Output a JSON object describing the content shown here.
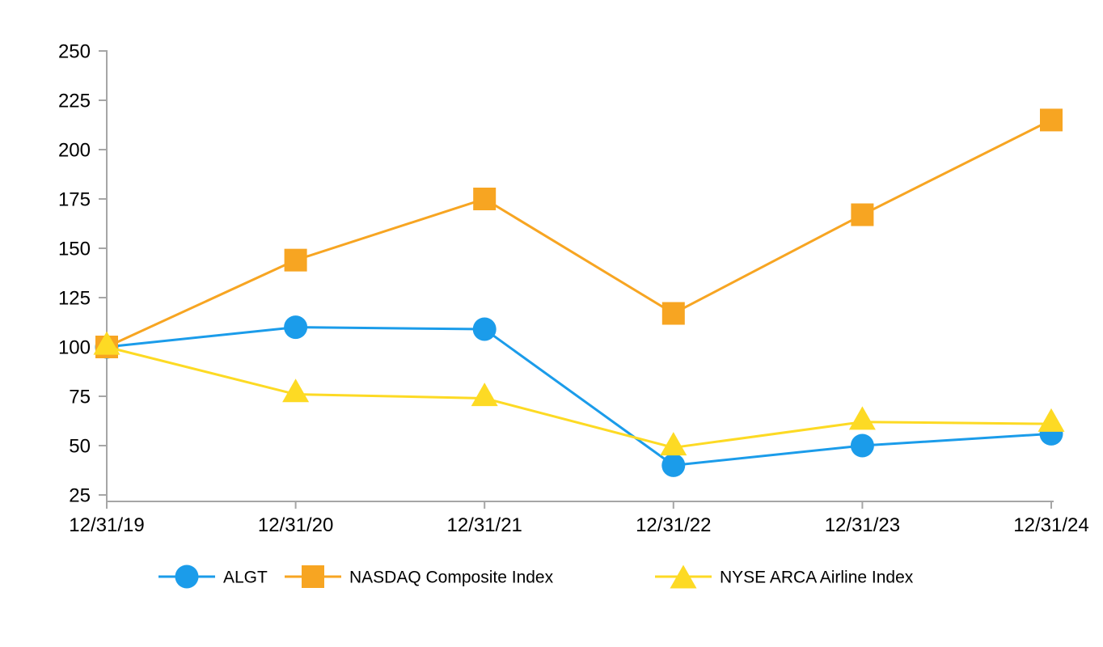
{
  "chart_data": {
    "type": "line",
    "title": "",
    "xlabel": "",
    "ylabel": "",
    "x": [
      "12/31/19",
      "12/31/20",
      "12/31/21",
      "12/31/22",
      "12/31/23",
      "12/31/24"
    ],
    "series": [
      {
        "name": "ALGT",
        "marker": "circle",
        "color": "#1B9CEA",
        "values": [
          100,
          110,
          109,
          40,
          50,
          56
        ]
      },
      {
        "name": "NASDAQ Composite Index",
        "marker": "square",
        "color": "#F7A522",
        "values": [
          100,
          144,
          175,
          117,
          167,
          215
        ]
      },
      {
        "name": "NYSE ARCA Airline Index",
        "marker": "triangle",
        "color": "#FDDA24",
        "values": [
          100,
          76,
          74,
          49,
          62,
          61
        ]
      }
    ],
    "ylim": [
      25,
      250
    ],
    "yticks": [
      25,
      50,
      75,
      100,
      125,
      150,
      175,
      200,
      225,
      250
    ],
    "grid": false,
    "legend_position": "bottom",
    "axis_color": "#A6A6A6",
    "text_color": "#000000",
    "background": "#FFFFFF"
  }
}
